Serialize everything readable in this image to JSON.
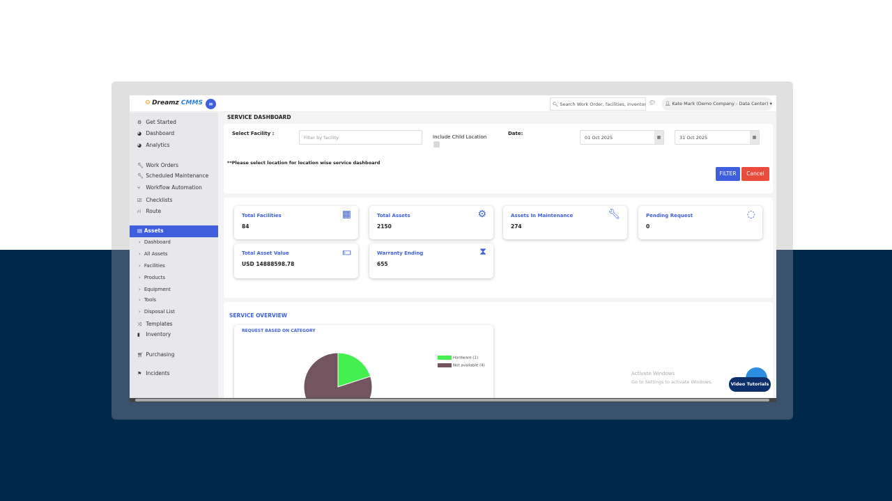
{
  "brand": {
    "logo_word1": "Dreamz",
    "logo_word2": "CMMS"
  },
  "header": {
    "search_placeholder": "Search Work Order, facilities, inventory",
    "user": "Kate Mark (Demo Company - Data Center)"
  },
  "sidebar": {
    "items": [
      {
        "label": "Get Started",
        "icon": "gears-icon"
      },
      {
        "label": "Dashboard",
        "icon": "dashboard-icon"
      },
      {
        "label": "Analytics",
        "icon": "analytics-icon"
      },
      {
        "label": "Work Orders",
        "icon": "wrench-icon"
      },
      {
        "label": "Scheduled Maintenance",
        "icon": "wrench-icon"
      },
      {
        "label": "Workflow Automation",
        "icon": "flow-icon"
      },
      {
        "label": "Checklists",
        "icon": "checkbox-icon"
      },
      {
        "label": "Route",
        "icon": "road-icon"
      }
    ],
    "active": "Assets",
    "sub_items": [
      "Dashboard",
      "All Assets",
      "Facilities",
      "Products",
      "Equipment",
      "Tools",
      "Disposal List"
    ],
    "items2": [
      {
        "label": "Templates",
        "icon": "shuffle-icon"
      },
      {
        "label": "Inventory",
        "icon": "barcode-icon"
      },
      {
        "label": "Purchasing",
        "icon": "cart-icon"
      },
      {
        "label": "Incidents",
        "icon": "flag-icon"
      }
    ]
  },
  "page": {
    "title": "SERVICE DASHBOARD"
  },
  "filters": {
    "facility_label": "Select Facility :",
    "facility_placeholder": "Filter by facility",
    "child_label": "Include Child Location",
    "date_label": "Date:",
    "date_from": "01 Oct 2025",
    "date_to": "31 Oct 2025",
    "warning": "**Please select location for location wise service dashboard",
    "filter_btn": "FILTER",
    "cancel_btn": "Cancel"
  },
  "cards": [
    {
      "title": "Total Facilities",
      "value": "84",
      "icon": "building-icon"
    },
    {
      "title": "Total Assets",
      "value": "2150",
      "icon": "gears-icon"
    },
    {
      "title": "Assets In Maintenance",
      "value": "274",
      "icon": "wrench-icon"
    },
    {
      "title": "Pending Request",
      "value": "0",
      "icon": "spinner-icon"
    },
    {
      "title": "Total Asset Value",
      "value": "USD 14888598.78",
      "icon": "money-icon"
    },
    {
      "title": "Warranty Ending",
      "value": "655",
      "icon": "hourglass-icon"
    }
  ],
  "overview": {
    "title": "SERVICE OVERVIEW"
  },
  "chart_data": {
    "type": "pie",
    "title": "REQUEST BASED ON CATEGORY",
    "legend": "right",
    "categories": [
      "Hardware (1)",
      "Not available (4)"
    ],
    "values": [
      1,
      4
    ],
    "colors": [
      "#44f050",
      "#735560"
    ]
  },
  "watermark": {
    "line1": "Activate Windows",
    "line2": "Go to Settings to activate Windows."
  },
  "video_tutorials": "Video Tutorials"
}
